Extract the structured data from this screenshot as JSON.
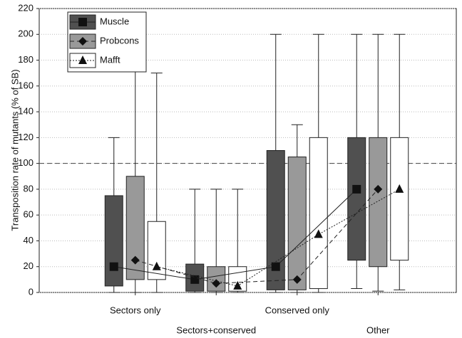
{
  "chart_data": {
    "type": "box",
    "y_label": "Transposition rate of mutants (% of SB)",
    "categories": [
      "Sectors only",
      "Sectors+conserved",
      "Conserved only",
      "Other"
    ],
    "ylim": [
      0,
      220
    ],
    "yticks": [
      0,
      20,
      40,
      60,
      80,
      100,
      120,
      140,
      160,
      180,
      200,
      220
    ],
    "grid": true,
    "reference_line": 100,
    "legend": "upper left",
    "series": [
      {
        "name": "Muscle",
        "color": "#505050",
        "marker": "square",
        "linestyle": "solid",
        "whisker_low": [
          0,
          0,
          0,
          3
        ],
        "q1": [
          5,
          1,
          2,
          25
        ],
        "q3": [
          75,
          22,
          110,
          120
        ],
        "whisker_high": [
          120,
          80,
          200,
          200
        ],
        "mean": [
          20,
          10,
          20,
          80
        ]
      },
      {
        "name": "Probcons",
        "color": "#999999",
        "marker": "diamond",
        "linestyle": "dashed",
        "whisker_low": [
          0,
          0,
          0,
          1
        ],
        "q1": [
          10,
          1,
          2,
          20
        ],
        "q3": [
          90,
          20,
          105,
          120
        ],
        "whisker_high": [
          190,
          80,
          130,
          200
        ],
        "mean": [
          25,
          7,
          10,
          80
        ]
      },
      {
        "name": "Mafft",
        "color": "#ffffff",
        "marker": "triangle",
        "linestyle": "dotted",
        "whisker_low": [
          0,
          0,
          0,
          2
        ],
        "q1": [
          10,
          1,
          3,
          25
        ],
        "q3": [
          55,
          20,
          120,
          120
        ],
        "whisker_high": [
          170,
          80,
          200,
          200
        ],
        "mean": [
          20,
          5,
          45,
          80
        ]
      }
    ]
  }
}
